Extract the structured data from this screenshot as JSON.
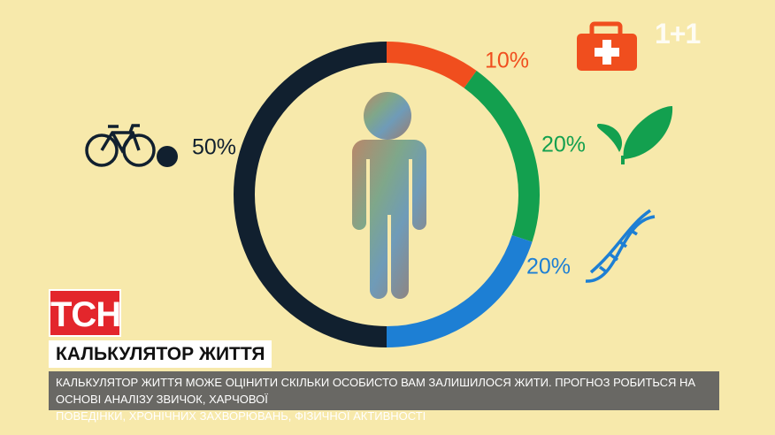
{
  "chart_data": {
    "type": "donut",
    "values": [
      10,
      20,
      20,
      50
    ],
    "value_labels": [
      "10%",
      "20%",
      "20%",
      "50%"
    ],
    "colors": [
      "#f04e1e",
      "#13a04f",
      "#1d7fd4",
      "#11202f"
    ],
    "label_colors": [
      "#f04e1e",
      "#13a04f",
      "#1d7fd4",
      "#11202f"
    ]
  },
  "overlay": {
    "logo": "ТСН",
    "headline": "КАЛЬКУЛЯТОР ЖИТТЯ",
    "caption": [
      "КАЛЬКУЛЯТОР ЖИТТЯ МОЖЕ ОЦІНИТИ СКІЛЬКИ ОСОБИСТО ВАМ ЗАЛИШИЛОСЯ ЖИТИ. ПРОГНОЗ РОБИТЬСЯ НА ОСНОВІ АНАЛІЗУ ЗВИЧОК, ХАРЧОВОЇ",
      "ПОВЕДІНКИ, ХРОНІЧНИХ ЗАХВОРЮВАНЬ, ФІЗИЧНОЇ АКТИВНОСТІ"
    ],
    "channel": "1+1"
  }
}
